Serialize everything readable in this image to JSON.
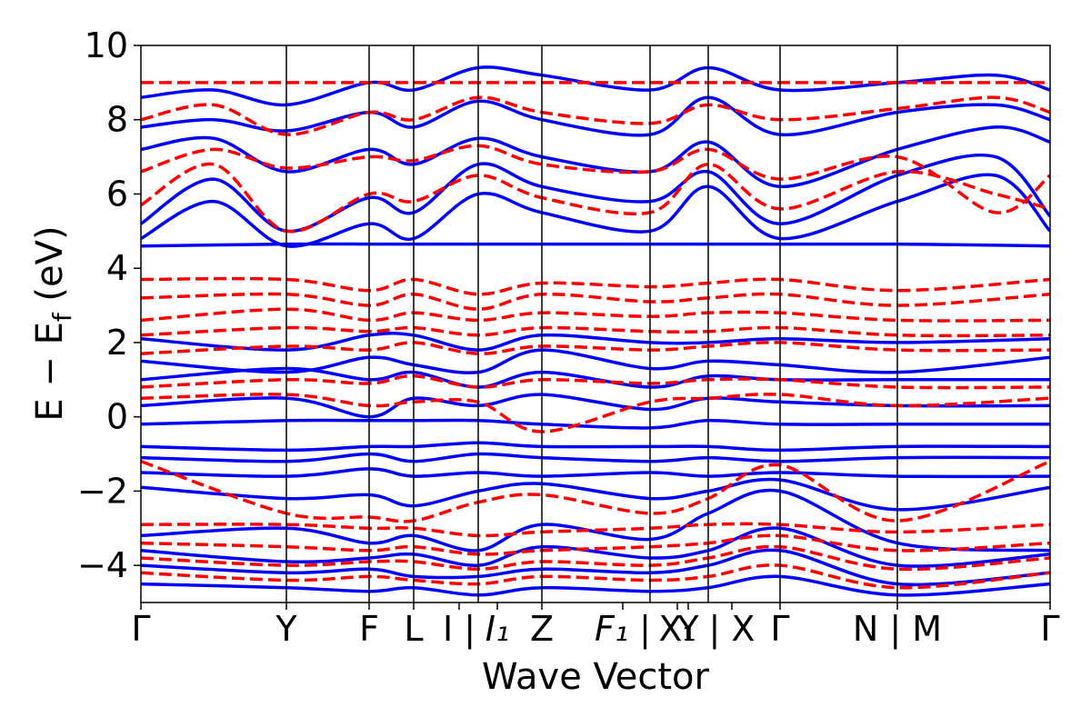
{
  "chart_data": {
    "type": "line",
    "title": "",
    "xlabel": "Wave Vector",
    "ylabel": "E − E_f (eV)",
    "ylabel_main": "E − E",
    "ylabel_sub": "f",
    "ylabel_unit": " (eV)",
    "ylim": [
      -5,
      10
    ],
    "yticks": [
      -4,
      -2,
      0,
      2,
      4,
      6,
      8,
      10
    ],
    "ytick_labels": [
      "−4",
      "−2",
      "0",
      "2",
      "4",
      "6",
      "8",
      "10"
    ],
    "xlim": [
      0,
      1
    ],
    "kpoints": [
      {
        "x": 0.0,
        "label": "Γ",
        "italic": false
      },
      {
        "x": 0.16,
        "label": "Y",
        "italic": false
      },
      {
        "x": 0.251,
        "label": "F",
        "italic": false
      },
      {
        "x": 0.3,
        "label": "L",
        "italic": false
      },
      {
        "x": 0.37,
        "label": "I | ",
        "italic": false
      },
      {
        "x": 0.371,
        "label": "I",
        "italic": true,
        "sub": "1"
      },
      {
        "x": 0.441,
        "label": "Z",
        "italic": false
      },
      {
        "x": 0.56,
        "label": "F",
        "italic": true,
        "sub": "1"
      },
      {
        "x": 0.56,
        "label": " | ",
        "italic": false
      },
      {
        "x": 0.62,
        "label": "Y",
        "italic": false
      },
      {
        "x": 0.62,
        "label": "X",
        "italic": false,
        "sub": "1"
      },
      {
        "x": 0.665,
        "label": " | X",
        "italic": false
      },
      {
        "x": 0.703,
        "label": "Γ",
        "italic": false
      },
      {
        "x": 0.83,
        "label": "N | M",
        "italic": false
      },
      {
        "x": 1.0,
        "label": "Γ",
        "italic": false
      }
    ],
    "vlines_x": [
      0.16,
      0.251,
      0.3,
      0.371,
      0.441,
      0.56,
      0.624,
      0.703,
      0.832
    ],
    "tick_labels_x": [
      {
        "text": "Γ",
        "x": 0.0
      },
      {
        "text": "Y",
        "x": 0.16
      },
      {
        "text": "F",
        "x": 0.251
      },
      {
        "text": "L",
        "x": 0.3
      },
      {
        "text": "I |",
        "x": 0.35
      },
      {
        "text": "I₁",
        "x": 0.392,
        "italic": true
      },
      {
        "text": "Z",
        "x": 0.441
      },
      {
        "text": "F₁ |",
        "x": 0.53,
        "italic": true
      },
      {
        "text": "X₁",
        "x": 0.59
      },
      {
        "text": "Y",
        "x": 0.602
      },
      {
        "text": "| X",
        "x": 0.65
      },
      {
        "text": "Γ",
        "x": 0.703
      },
      {
        "text": "N | M",
        "x": 0.832
      },
      {
        "text": "Γ",
        "x": 1.0
      }
    ],
    "series_styles": [
      {
        "color": "#0000ff",
        "dash": "solid"
      },
      {
        "color": "#ff0000",
        "dash": "dashed"
      }
    ],
    "bands_blue": [
      {
        "x": [
          0,
          0.16,
          0.251,
          0.3,
          0.371,
          0.441,
          0.56,
          0.624,
          0.703,
          0.832,
          1.0
        ],
        "y": [
          4.6,
          4.65,
          4.65,
          4.65,
          4.65,
          4.65,
          4.65,
          4.65,
          4.65,
          4.65,
          4.6
        ]
      },
      {
        "x": [
          0,
          0.08,
          0.16,
          0.251,
          0.3,
          0.371,
          0.441,
          0.56,
          0.624,
          0.703,
          0.832,
          0.94,
          1.0
        ],
        "y": [
          4.8,
          5.8,
          4.6,
          5.2,
          4.8,
          6.0,
          5.5,
          5.0,
          6.2,
          4.8,
          5.8,
          6.5,
          5.0
        ]
      },
      {
        "x": [
          0,
          0.08,
          0.16,
          0.251,
          0.3,
          0.371,
          0.441,
          0.56,
          0.624,
          0.703,
          0.832,
          0.94,
          1.0
        ],
        "y": [
          5.2,
          6.4,
          5.0,
          5.9,
          5.5,
          6.8,
          6.2,
          5.8,
          6.6,
          5.2,
          6.5,
          7.0,
          5.4
        ]
      },
      {
        "x": [
          0,
          0.08,
          0.16,
          0.251,
          0.3,
          0.371,
          0.441,
          0.56,
          0.624,
          0.703,
          0.832,
          0.94,
          1.0
        ],
        "y": [
          7.2,
          7.5,
          6.6,
          7.2,
          6.8,
          7.5,
          7.0,
          6.6,
          7.4,
          6.2,
          7.2,
          7.8,
          7.4
        ]
      },
      {
        "x": [
          0,
          0.08,
          0.16,
          0.251,
          0.3,
          0.371,
          0.441,
          0.56,
          0.624,
          0.703,
          0.832,
          0.94,
          1.0
        ],
        "y": [
          7.8,
          8.0,
          7.7,
          8.2,
          7.8,
          8.5,
          8.0,
          7.6,
          8.6,
          7.6,
          8.2,
          8.4,
          8.0
        ]
      },
      {
        "x": [
          0,
          0.08,
          0.16,
          0.251,
          0.3,
          0.371,
          0.441,
          0.56,
          0.624,
          0.703,
          0.832,
          0.94,
          1.0
        ],
        "y": [
          8.6,
          8.8,
          8.4,
          9.0,
          8.8,
          9.4,
          9.2,
          8.8,
          9.4,
          8.8,
          9.0,
          9.2,
          8.8
        ]
      },
      {
        "x": [
          0,
          0.16,
          0.251,
          0.3,
          0.371,
          0.441,
          0.56,
          0.624,
          0.703,
          0.832,
          1.0
        ],
        "y": [
          2.1,
          1.8,
          2.2,
          2.2,
          1.8,
          2.2,
          2.0,
          2.0,
          2.1,
          2.0,
          2.1
        ]
      },
      {
        "x": [
          0,
          0.16,
          0.251,
          0.3,
          0.371,
          0.441,
          0.56,
          0.624,
          0.703,
          0.832,
          1.0
        ],
        "y": [
          1.5,
          1.2,
          1.6,
          1.4,
          1.2,
          1.8,
          1.3,
          1.5,
          1.4,
          1.2,
          1.6
        ]
      },
      {
        "x": [
          0,
          0.16,
          0.251,
          0.3,
          0.371,
          0.441,
          0.56,
          0.624,
          0.703,
          0.832,
          1.0
        ],
        "y": [
          1.0,
          1.3,
          1.0,
          1.2,
          0.8,
          1.2,
          0.8,
          1.1,
          1.0,
          1.0,
          1.0
        ]
      },
      {
        "x": [
          0,
          0.16,
          0.251,
          0.3,
          0.371,
          0.441,
          0.56,
          0.624,
          0.703,
          0.832,
          1.0
        ],
        "y": [
          0.3,
          0.5,
          0.0,
          0.5,
          0.3,
          0.6,
          0.2,
          0.5,
          0.4,
          0.3,
          0.3
        ]
      },
      {
        "x": [
          0,
          0.16,
          0.251,
          0.3,
          0.371,
          0.441,
          0.56,
          0.624,
          0.703,
          0.832,
          1.0
        ],
        "y": [
          -0.2,
          -0.1,
          -0.1,
          -0.1,
          -0.1,
          -0.2,
          -0.3,
          -0.1,
          -0.2,
          -0.2,
          -0.2
        ]
      },
      {
        "x": [
          0,
          0.16,
          0.251,
          0.3,
          0.371,
          0.441,
          0.56,
          0.624,
          0.703,
          0.832,
          1.0
        ],
        "y": [
          -0.8,
          -0.9,
          -0.8,
          -0.8,
          -0.7,
          -0.8,
          -0.8,
          -0.8,
          -0.9,
          -0.8,
          -0.8
        ]
      },
      {
        "x": [
          0,
          0.16,
          0.251,
          0.3,
          0.371,
          0.441,
          0.56,
          0.624,
          0.703,
          0.832,
          1.0
        ],
        "y": [
          -1.1,
          -1.2,
          -1.0,
          -1.2,
          -1.0,
          -1.1,
          -1.2,
          -1.1,
          -1.2,
          -1.1,
          -1.1
        ]
      },
      {
        "x": [
          0,
          0.16,
          0.251,
          0.3,
          0.371,
          0.441,
          0.56,
          0.624,
          0.703,
          0.832,
          1.0
        ],
        "y": [
          -1.5,
          -1.6,
          -1.4,
          -1.6,
          -1.5,
          -1.6,
          -1.5,
          -1.6,
          -1.5,
          -1.6,
          -1.6
        ]
      },
      {
        "x": [
          0,
          0.16,
          0.251,
          0.3,
          0.371,
          0.441,
          0.56,
          0.624,
          0.703,
          0.832,
          1.0
        ],
        "y": [
          -1.9,
          -2.2,
          -2.1,
          -2.4,
          -2.0,
          -1.8,
          -2.2,
          -2.0,
          -1.7,
          -2.5,
          -1.9
        ]
      },
      {
        "x": [
          0,
          0.16,
          0.251,
          0.3,
          0.371,
          0.441,
          0.56,
          0.624,
          0.703,
          0.832,
          1.0
        ],
        "y": [
          -3.2,
          -3.0,
          -3.4,
          -3.2,
          -3.6,
          -2.9,
          -3.3,
          -2.6,
          -2.0,
          -3.4,
          -3.6
        ]
      },
      {
        "x": [
          0,
          0.16,
          0.251,
          0.3,
          0.371,
          0.441,
          0.56,
          0.624,
          0.703,
          0.832,
          1.0
        ],
        "y": [
          -3.6,
          -3.9,
          -3.8,
          -3.7,
          -4.0,
          -3.5,
          -3.8,
          -3.6,
          -3.0,
          -4.0,
          -3.7
        ]
      },
      {
        "x": [
          0,
          0.16,
          0.251,
          0.3,
          0.371,
          0.441,
          0.56,
          0.624,
          0.703,
          0.832,
          1.0
        ],
        "y": [
          -4.0,
          -4.2,
          -4.1,
          -4.3,
          -4.3,
          -4.1,
          -4.2,
          -4.0,
          -3.6,
          -4.5,
          -4.2
        ]
      },
      {
        "x": [
          0,
          0.16,
          0.251,
          0.3,
          0.371,
          0.441,
          0.56,
          0.624,
          0.703,
          0.832,
          1.0
        ],
        "y": [
          -4.5,
          -4.6,
          -4.7,
          -4.6,
          -4.8,
          -4.6,
          -4.7,
          -4.6,
          -4.3,
          -4.8,
          -4.5
        ]
      }
    ],
    "bands_red": [
      {
        "x": [
          0,
          0.16,
          0.251,
          0.3,
          0.371,
          0.441,
          0.56,
          0.624,
          0.703,
          0.832,
          1.0
        ],
        "y": [
          9.0,
          9.0,
          9.0,
          9.0,
          9.0,
          9.0,
          9.0,
          9.0,
          9.0,
          9.0,
          9.0
        ]
      },
      {
        "x": [
          0,
          0.08,
          0.16,
          0.251,
          0.3,
          0.371,
          0.441,
          0.56,
          0.624,
          0.703,
          0.832,
          0.94,
          1.0
        ],
        "y": [
          5.7,
          6.8,
          5.0,
          6.0,
          5.8,
          6.5,
          5.9,
          5.5,
          6.8,
          5.6,
          6.6,
          6.0,
          5.6
        ]
      },
      {
        "x": [
          0,
          0.08,
          0.16,
          0.251,
          0.3,
          0.371,
          0.441,
          0.56,
          0.624,
          0.703,
          0.832,
          0.94,
          1.0
        ],
        "y": [
          6.6,
          7.2,
          6.7,
          7.0,
          6.9,
          7.3,
          6.8,
          6.6,
          7.2,
          6.4,
          7.0,
          5.5,
          6.5
        ]
      },
      {
        "x": [
          0,
          0.08,
          0.16,
          0.251,
          0.3,
          0.371,
          0.441,
          0.56,
          0.624,
          0.703,
          0.832,
          0.94,
          1.0
        ],
        "y": [
          8.0,
          8.4,
          7.6,
          8.2,
          8.0,
          8.6,
          8.2,
          7.9,
          8.4,
          8.0,
          8.3,
          8.6,
          8.2
        ]
      },
      {
        "x": [
          0,
          0.16,
          0.251,
          0.3,
          0.371,
          0.441,
          0.56,
          0.624,
          0.703,
          0.832,
          1.0
        ],
        "y": [
          3.7,
          3.7,
          3.4,
          3.7,
          3.3,
          3.6,
          3.5,
          3.6,
          3.7,
          3.4,
          3.7
        ]
      },
      {
        "x": [
          0,
          0.16,
          0.251,
          0.3,
          0.371,
          0.441,
          0.56,
          0.624,
          0.703,
          0.832,
          1.0
        ],
        "y": [
          3.2,
          3.3,
          3.0,
          3.3,
          2.9,
          3.3,
          3.1,
          3.2,
          3.3,
          3.0,
          3.3
        ]
      },
      {
        "x": [
          0,
          0.16,
          0.251,
          0.3,
          0.371,
          0.441,
          0.56,
          0.624,
          0.703,
          0.832,
          1.0
        ],
        "y": [
          2.6,
          2.9,
          2.6,
          2.8,
          2.6,
          2.8,
          2.7,
          2.8,
          2.8,
          2.6,
          2.6
        ]
      },
      {
        "x": [
          0,
          0.16,
          0.251,
          0.3,
          0.371,
          0.441,
          0.56,
          0.624,
          0.703,
          0.832,
          1.0
        ],
        "y": [
          2.2,
          2.4,
          2.3,
          2.4,
          2.2,
          2.4,
          2.3,
          2.3,
          2.4,
          2.2,
          2.2
        ]
      },
      {
        "x": [
          0,
          0.16,
          0.251,
          0.3,
          0.371,
          0.441,
          0.56,
          0.624,
          0.703,
          0.832,
          1.0
        ],
        "y": [
          1.7,
          1.9,
          1.8,
          2.0,
          1.7,
          1.9,
          1.8,
          1.9,
          2.0,
          1.8,
          1.8
        ]
      },
      {
        "x": [
          0,
          0.16,
          0.251,
          0.3,
          0.371,
          0.441,
          0.56,
          0.624,
          0.703,
          0.832,
          1.0
        ],
        "y": [
          0.8,
          1.0,
          0.9,
          1.1,
          0.8,
          1.0,
          0.9,
          1.0,
          1.0,
          0.8,
          0.8
        ]
      },
      {
        "x": [
          0,
          0.16,
          0.251,
          0.3,
          0.371,
          0.441,
          0.56,
          0.624,
          0.703,
          0.832,
          1.0
        ],
        "y": [
          0.5,
          0.6,
          0.3,
          0.4,
          0.4,
          -0.4,
          0.4,
          0.5,
          0.6,
          0.3,
          0.5
        ]
      },
      {
        "x": [
          0,
          0.16,
          0.251,
          0.3,
          0.371,
          0.441,
          0.56,
          0.624,
          0.703,
          0.832,
          1.0
        ],
        "y": [
          -1.2,
          -2.6,
          -2.7,
          -2.8,
          -2.3,
          -2.1,
          -2.6,
          -2.2,
          -1.3,
          -2.8,
          -1.2
        ]
      },
      {
        "x": [
          0,
          0.16,
          0.251,
          0.3,
          0.371,
          0.441,
          0.56,
          0.624,
          0.703,
          0.832,
          1.0
        ],
        "y": [
          -2.9,
          -2.9,
          -3.0,
          -3.0,
          -3.2,
          -3.1,
          -3.0,
          -2.9,
          -2.9,
          -3.1,
          -2.9
        ]
      },
      {
        "x": [
          0,
          0.16,
          0.251,
          0.3,
          0.371,
          0.441,
          0.56,
          0.624,
          0.703,
          0.832,
          1.0
        ],
        "y": [
          -3.4,
          -3.5,
          -3.6,
          -3.5,
          -3.7,
          -3.6,
          -3.5,
          -3.4,
          -3.2,
          -3.6,
          -3.4
        ]
      },
      {
        "x": [
          0,
          0.16,
          0.251,
          0.3,
          0.371,
          0.441,
          0.56,
          0.624,
          0.703,
          0.832,
          1.0
        ],
        "y": [
          -3.8,
          -4.0,
          -3.9,
          -3.9,
          -4.1,
          -3.9,
          -4.0,
          -3.8,
          -3.5,
          -4.1,
          -3.8
        ]
      },
      {
        "x": [
          0,
          0.16,
          0.251,
          0.3,
          0.371,
          0.441,
          0.56,
          0.624,
          0.703,
          0.832,
          1.0
        ],
        "y": [
          -4.2,
          -4.4,
          -4.3,
          -4.4,
          -4.5,
          -4.3,
          -4.4,
          -4.3,
          -4.0,
          -4.6,
          -4.2
        ]
      }
    ]
  }
}
